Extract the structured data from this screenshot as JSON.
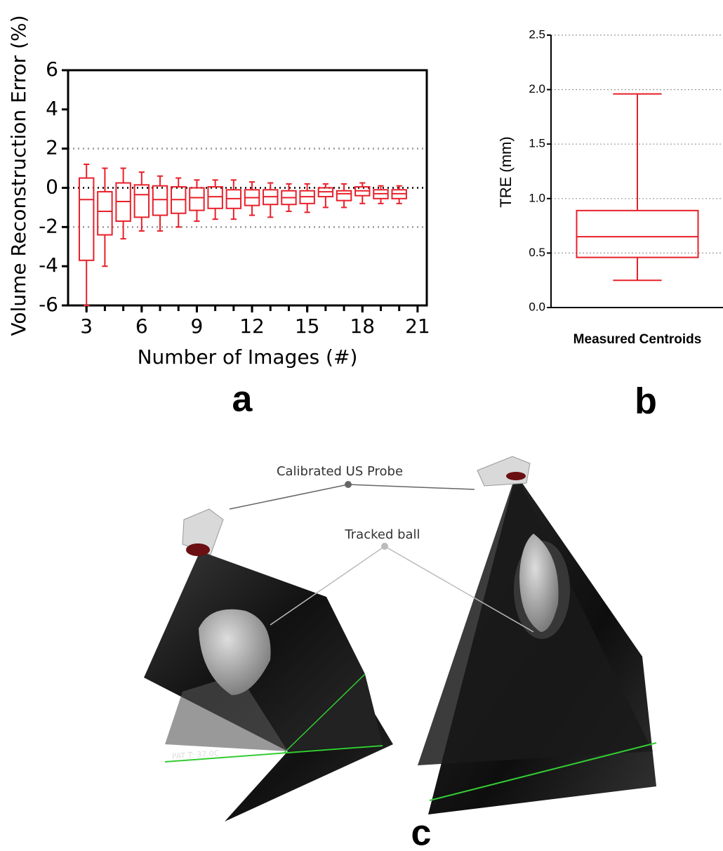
{
  "chart_data": [
    {
      "type": "box",
      "ylabel": "Volume Reconstruction Error (%)",
      "xlabel": "Number of Images (#)",
      "color": "#e8202a",
      "x": [
        3,
        4,
        5,
        6,
        7,
        8,
        9,
        10,
        11,
        12,
        13,
        14,
        15,
        16,
        17,
        18,
        19,
        20
      ],
      "boxes": [
        {
          "min": -6,
          "q1": -3.7,
          "median": -0.6,
          "q3": 0.5,
          "max": 1.2
        },
        {
          "min": -4.0,
          "q1": -2.4,
          "median": -1.2,
          "q3": -0.2,
          "max": 1.0
        },
        {
          "min": -2.6,
          "q1": -1.7,
          "median": -0.7,
          "q3": 0.25,
          "max": 1.0
        },
        {
          "min": -2.2,
          "q1": -1.5,
          "median": -0.35,
          "q3": 0.15,
          "max": 0.8
        },
        {
          "min": -2.2,
          "q1": -1.4,
          "median": -0.6,
          "q3": 0.1,
          "max": 0.6
        },
        {
          "min": -2.0,
          "q1": -1.3,
          "median": -0.6,
          "q3": 0.05,
          "max": 0.5
        },
        {
          "min": -1.7,
          "q1": -1.15,
          "median": -0.5,
          "q3": 0,
          "max": 0.4
        },
        {
          "min": -1.6,
          "q1": -1.05,
          "median": -0.45,
          "q3": 0.05,
          "max": 0.4
        },
        {
          "min": -1.6,
          "q1": -1.05,
          "median": -0.55,
          "q3": -0.1,
          "max": 0.4
        },
        {
          "min": -1.4,
          "q1": -0.9,
          "median": -0.5,
          "q3": -0.1,
          "max": 0.3
        },
        {
          "min": -1.5,
          "q1": -0.85,
          "median": -0.45,
          "q3": -0.1,
          "max": 0.25
        },
        {
          "min": -1.2,
          "q1": -0.85,
          "median": -0.5,
          "q3": -0.15,
          "max": 0.2
        },
        {
          "min": -1.25,
          "q1": -0.8,
          "median": -0.45,
          "q3": -0.15,
          "max": 0.2
        },
        {
          "min": -1.0,
          "q1": -0.45,
          "median": -0.2,
          "q3": 0,
          "max": 0.2
        },
        {
          "min": -1.0,
          "q1": -0.65,
          "median": -0.3,
          "q3": -0.15,
          "max": 0.2
        },
        {
          "min": -0.8,
          "q1": -0.4,
          "median": -0.15,
          "q3": 0.05,
          "max": 0.25
        },
        {
          "min": -0.8,
          "q1": -0.55,
          "median": -0.3,
          "q3": -0.1,
          "max": 0.1
        },
        {
          "min": -0.8,
          "q1": -0.55,
          "median": -0.3,
          "q3": -0.1,
          "max": 0.1
        }
      ],
      "xlim": [
        2,
        21.5
      ],
      "xticks": [
        3,
        6,
        9,
        12,
        15,
        18,
        21
      ],
      "ylim": [
        -6,
        6
      ],
      "yticks": [
        -6,
        -4,
        -2,
        0,
        2,
        4,
        6
      ],
      "hlines": [
        {
          "value": 2,
          "color": "#999999"
        },
        {
          "value": 0,
          "color": "#000000"
        },
        {
          "value": -2,
          "color": "#999999"
        }
      ]
    },
    {
      "type": "box",
      "ylabel": "TRE (mm)",
      "color": "#e8202a",
      "categories": [
        "Measured Centroids"
      ],
      "boxes": [
        {
          "min": 0.25,
          "q1": 0.46,
          "median": 0.65,
          "q3": 0.89,
          "max": 1.96
        }
      ],
      "ylim": [
        0,
        2.5
      ],
      "yticks": [
        {
          "value": 0,
          "label": "0.0"
        },
        {
          "value": 0.5,
          "label": "0.5"
        },
        {
          "value": 1,
          "label": "1.0"
        },
        {
          "value": 1.5,
          "label": "1.5"
        },
        {
          "value": 2,
          "label": "2.0"
        },
        {
          "value": 2.5,
          "label": "2.5"
        }
      ],
      "grid": true
    }
  ],
  "panels": [
    "a",
    "b",
    "c"
  ],
  "image": {
    "annotations": [
      "Calibrated US Probe",
      "Tracked ball"
    ],
    "overlay_text": "PAT T: 37.0C"
  }
}
